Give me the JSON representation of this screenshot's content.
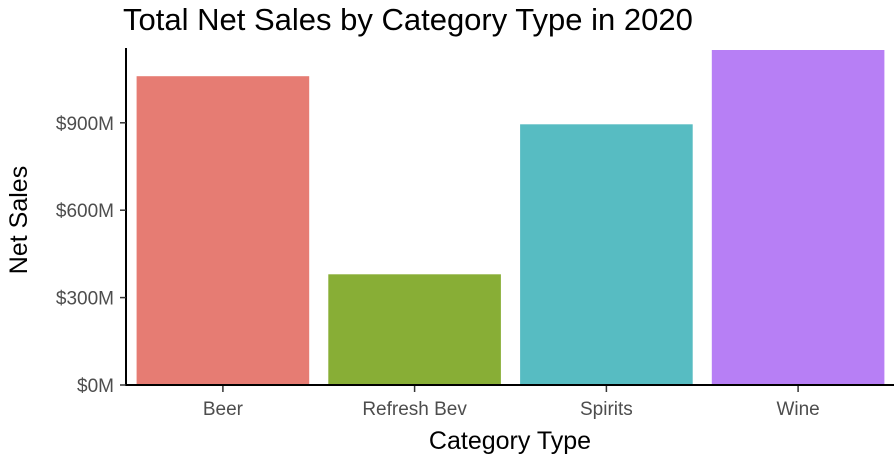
{
  "chart_data": {
    "type": "bar",
    "title": "Total Net Sales by Category Type in 2020",
    "xlabel": "Category Type",
    "ylabel": "Net Sales",
    "categories": [
      "Beer",
      "Refresh Bev",
      "Spirits",
      "Wine"
    ],
    "values": [
      1060,
      380,
      895,
      1150
    ],
    "colors": [
      "#e67c73",
      "#88ae36",
      "#57bcc2",
      "#b77ff5"
    ],
    "value_unit": "M USD",
    "ylim": [
      0,
      1150
    ],
    "yticks": [
      0,
      300,
      600,
      900
    ],
    "ytick_labels": [
      "$0M",
      "$300M",
      "$600M",
      "$900M"
    ],
    "grid": false,
    "legend": "none"
  }
}
